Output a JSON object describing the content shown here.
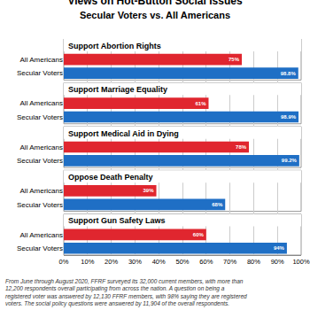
{
  "chart_data": {
    "type": "bar",
    "orientation": "horizontal",
    "title": "Views on Hot-Button Social Issues",
    "subtitle": "Secular Voters vs. All Americans",
    "categories": [
      "Support Abortion Rights",
      "Support Marriage Equality",
      "Support Medical Aid in Dying",
      "Oppose Death Penalty",
      "Support Gun Safety Laws"
    ],
    "series": [
      {
        "name": "All Americans",
        "color": "#e0262f",
        "values": [
          75,
          61,
          78,
          39,
          60
        ],
        "value_labels": [
          "75%",
          "61%",
          "78%",
          "39%",
          "60%"
        ]
      },
      {
        "name": "Secular Voters",
        "color": "#1f6fc5",
        "values": [
          98.8,
          98.9,
          99.2,
          68,
          94
        ],
        "value_labels": [
          "98.8%",
          "98.9%",
          "99.2%",
          "68%",
          "94%"
        ]
      }
    ],
    "data_labels": true,
    "grid": true,
    "xlim": [
      0,
      100
    ],
    "xticks": [
      {
        "value": 0,
        "label": "0%"
      },
      {
        "value": 10,
        "label": "10%"
      },
      {
        "value": 20,
        "label": "20%"
      },
      {
        "value": 30,
        "label": "30%"
      },
      {
        "value": 40,
        "label": "40%"
      },
      {
        "value": 50,
        "label": "50%"
      },
      {
        "value": 60,
        "label": "60%"
      },
      {
        "value": 70,
        "label": "70%"
      },
      {
        "value": 80,
        "label": "80%"
      },
      {
        "value": 90,
        "label": "90%"
      },
      {
        "value": 100,
        "label": "100%"
      }
    ],
    "footnote": "From June through August 2020, FFRF surveyed its 32,000 current members, with more than 12,200 respondents overall participating from across the nation. A question on being a registered voter was answered by 12,130 FFRF members, with 98% saying they are registered voters. The social policy questions were answered by 11,904 of the overall respondents."
  }
}
